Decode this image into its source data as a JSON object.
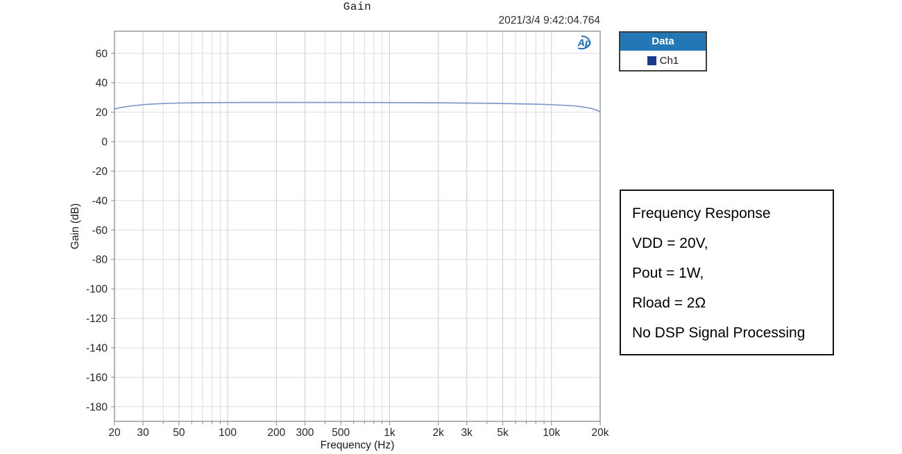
{
  "chart_data": {
    "type": "line",
    "title": "Gain",
    "timestamp": "2021/3/4 9:42:04.764",
    "xlabel": "Frequency (Hz)",
    "ylabel": "Gain (dB)",
    "x_scale": "log",
    "xlim": [
      20,
      20000
    ],
    "ylim": [
      -190,
      75
    ],
    "grid": true,
    "x_ticks": [
      {
        "value": 20,
        "label": "20"
      },
      {
        "value": 30,
        "label": "30"
      },
      {
        "value": 50,
        "label": "50"
      },
      {
        "value": 100,
        "label": "100"
      },
      {
        "value": 200,
        "label": "200"
      },
      {
        "value": 300,
        "label": "300"
      },
      {
        "value": 500,
        "label": "500"
      },
      {
        "value": 1000,
        "label": "1k"
      },
      {
        "value": 2000,
        "label": "2k"
      },
      {
        "value": 3000,
        "label": "3k"
      },
      {
        "value": 5000,
        "label": "5k"
      },
      {
        "value": 10000,
        "label": "10k"
      },
      {
        "value": 20000,
        "label": "20k"
      }
    ],
    "y_ticks": [
      60,
      40,
      20,
      0,
      -20,
      -40,
      -60,
      -80,
      -100,
      -120,
      -140,
      -160,
      -180
    ],
    "series": [
      {
        "name": "Ch1",
        "color": "#8397c8",
        "points": [
          [
            20,
            22.3
          ],
          [
            23,
            23.6
          ],
          [
            26,
            24.4
          ],
          [
            30,
            25.1
          ],
          [
            36,
            25.7
          ],
          [
            45,
            26.1
          ],
          [
            60,
            26.4
          ],
          [
            80,
            26.5
          ],
          [
            120,
            26.6
          ],
          [
            250,
            26.6
          ],
          [
            600,
            26.6
          ],
          [
            1200,
            26.5
          ],
          [
            2000,
            26.4
          ],
          [
            3000,
            26.2
          ],
          [
            4500,
            26.0
          ],
          [
            6500,
            25.7
          ],
          [
            8500,
            25.4
          ],
          [
            10000,
            25.1
          ],
          [
            12000,
            24.7
          ],
          [
            14000,
            24.2
          ],
          [
            16000,
            23.4
          ],
          [
            17500,
            22.6
          ],
          [
            18500,
            21.9
          ],
          [
            19500,
            20.9
          ],
          [
            20000,
            20.3
          ]
        ]
      }
    ],
    "legend": {
      "header": "Data",
      "header_bg": "#2377b4",
      "position": "top-right-outside",
      "entries": [
        {
          "label": "Ch1",
          "swatch_color": "#1b3a8c"
        }
      ]
    },
    "annotation": {
      "lines": [
        "Frequency Response",
        "VDD = 20V,",
        "Pout = 1W,",
        "Rload = 2Ω",
        "No DSP Signal Processing"
      ]
    },
    "logo_text": "Ap",
    "colors": {
      "curve": "#8397c8",
      "logo_blue": "#1e6cb0",
      "grid_minor": "#dcdcdc",
      "grid_major": "#cdcdcd",
      "frame": "#8a8a8a",
      "tick_text": "#262626"
    }
  }
}
